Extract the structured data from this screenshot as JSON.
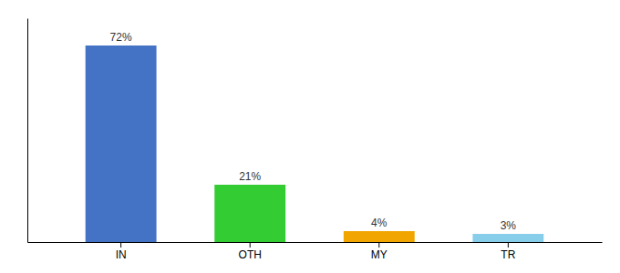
{
  "chart_data": {
    "type": "bar",
    "categories": [
      "IN",
      "OTH",
      "MY",
      "TR"
    ],
    "values": [
      72,
      21,
      4,
      3
    ],
    "value_labels": [
      "72%",
      "21%",
      "4%",
      "3%"
    ],
    "data_labels": true,
    "colors": [
      "#4472c4",
      "#33cc33",
      "#f0a500",
      "#87ceeb"
    ],
    "ylim": [
      0,
      82
    ],
    "tick_labels": "x",
    "grid": false
  }
}
